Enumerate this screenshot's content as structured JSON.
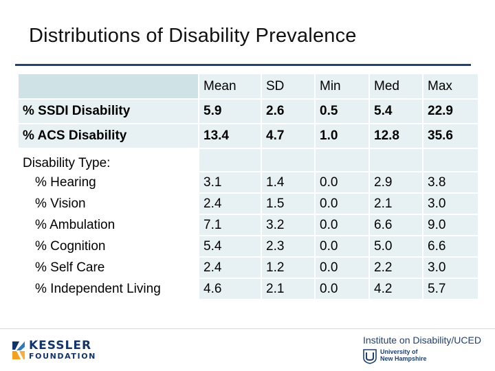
{
  "slide": {
    "title": "Distributions of Disability Prevalence"
  },
  "table": {
    "columns": [
      "Mean",
      "SD",
      "Min",
      "Med",
      "Max"
    ],
    "rows": [
      {
        "label": "% SSDI Disability",
        "values": [
          "5.9",
          "2.6",
          "0.5",
          "5.4",
          "22.9"
        ]
      },
      {
        "label": "% ACS Disability",
        "values": [
          "13.4",
          "4.7",
          "1.0",
          "12.8",
          "35.6"
        ]
      }
    ],
    "section_label": "Disability Type:",
    "sub_rows": [
      {
        "label": "% Hearing",
        "values": [
          "3.1",
          "1.4",
          "0.0",
          "2.9",
          "3.8"
        ]
      },
      {
        "label": "% Vision",
        "values": [
          "2.4",
          "1.5",
          "0.0",
          "2.1",
          "3.0"
        ]
      },
      {
        "label": "% Ambulation",
        "values": [
          "7.1",
          "3.2",
          "0.0",
          "6.6",
          "9.0"
        ]
      },
      {
        "label": "% Cognition",
        "values": [
          "5.4",
          "2.3",
          "0.0",
          "5.0",
          "6.6"
        ]
      },
      {
        "label": "% Self Care",
        "values": [
          "2.4",
          "1.2",
          "0.0",
          "2.2",
          "3.0"
        ]
      },
      {
        "label": "% Independent Living",
        "values": [
          "4.6",
          "2.1",
          "0.0",
          "4.2",
          "5.7"
        ]
      }
    ]
  },
  "footer": {
    "kessler_name": "KESSLER",
    "kessler_sub": "FOUNDATION",
    "institute": "Institute on Disability/UCED",
    "unh_line1": "University of",
    "unh_line2": "New Hampshire"
  },
  "colors": {
    "title_rule": "#24416b",
    "cell_fill": "#e7f1f3",
    "header_corner_fill": "#cfe2e6",
    "brand_navy": "#12346b",
    "brand_orange": "#f4a11d"
  }
}
